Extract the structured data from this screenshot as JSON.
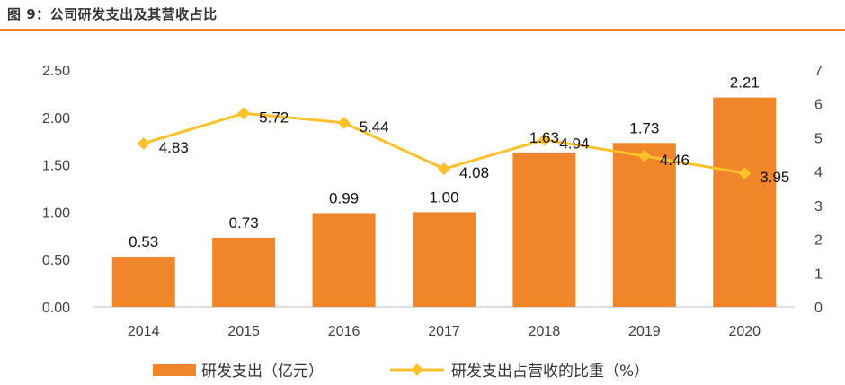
{
  "figure_title": "图 9：公司研发支出及其营收占比",
  "colors": {
    "bar": "#F0852A",
    "line": "#FDC12B",
    "rule": "#E9842A"
  },
  "chart_data": {
    "type": "bar",
    "title": "",
    "categories": [
      "2014",
      "2015",
      "2016",
      "2017",
      "2018",
      "2019",
      "2020"
    ],
    "series": [
      {
        "name": "研发支出（亿元）",
        "type": "bar",
        "axis": "left",
        "values": [
          0.53,
          0.73,
          0.99,
          1.0,
          1.63,
          1.73,
          2.21
        ],
        "labels": [
          "0.53",
          "0.73",
          "0.99",
          "1.00",
          "1.63",
          "1.73",
          "2.21"
        ]
      },
      {
        "name": "研发支出占营收的比重（%）",
        "type": "line",
        "axis": "right",
        "values": [
          4.83,
          5.72,
          5.44,
          4.08,
          4.94,
          4.46,
          3.95
        ],
        "labels": [
          "4.83",
          "5.72",
          "5.44",
          "4.08",
          "4.94",
          "4.46",
          "3.95"
        ]
      }
    ],
    "y_left": {
      "ylim": [
        0,
        2.5
      ],
      "ticks": [
        "0.00",
        "0.50",
        "1.00",
        "1.50",
        "2.00",
        "2.50"
      ]
    },
    "y_right": {
      "ylim": [
        0,
        7
      ],
      "ticks": [
        "0",
        "1",
        "2",
        "3",
        "4",
        "5",
        "6",
        "7"
      ]
    },
    "grid": false,
    "legend_position": "bottom"
  }
}
